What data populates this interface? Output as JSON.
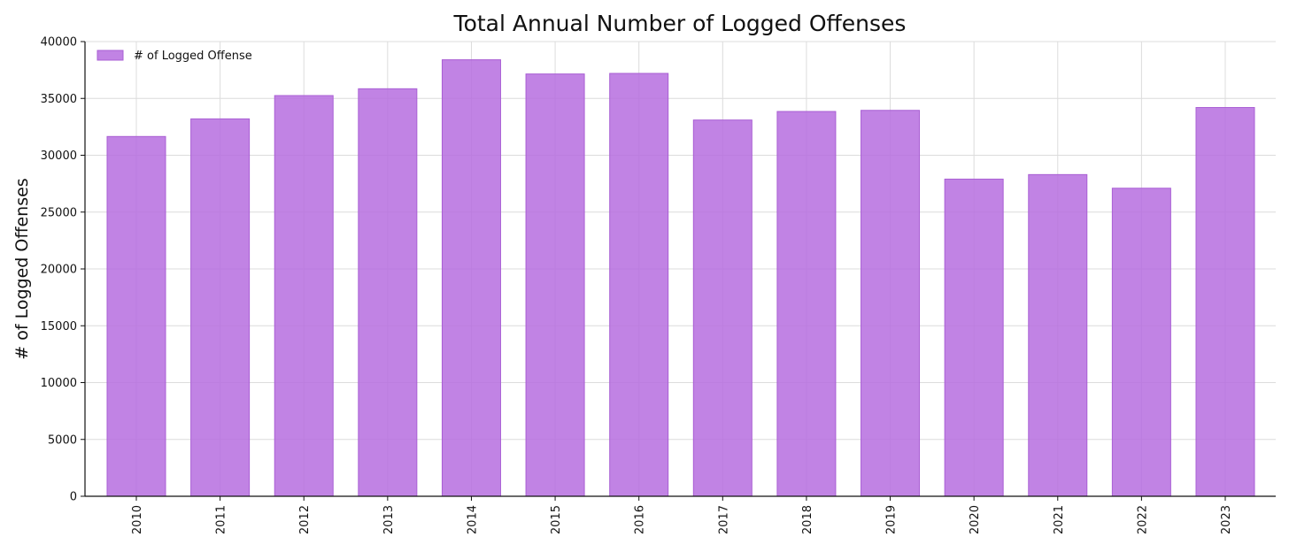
{
  "chart_data": {
    "type": "bar",
    "title": "Total Annual Number of Logged Offenses",
    "xlabel": "",
    "ylabel": "# of Logged Offenses",
    "categories": [
      "2010",
      "2011",
      "2012",
      "2013",
      "2014",
      "2015",
      "2016",
      "2017",
      "2018",
      "2019",
      "2020",
      "2021",
      "2022",
      "2023"
    ],
    "series": [
      {
        "name": "# of Logged Offense",
        "values": [
          31650,
          33200,
          35250,
          35850,
          38400,
          37150,
          37200,
          33100,
          33850,
          33950,
          27900,
          28300,
          27100,
          34200
        ]
      }
    ],
    "ylim": [
      0,
      40000
    ],
    "yticks": [
      "0",
      "5000",
      "10000",
      "15000",
      "20000",
      "25000",
      "30000",
      "35000",
      "40000"
    ],
    "grid": true,
    "legend_position": "top-left",
    "bar_color": "#b66ddf",
    "bar_edge_color": "#a95fd4"
  }
}
